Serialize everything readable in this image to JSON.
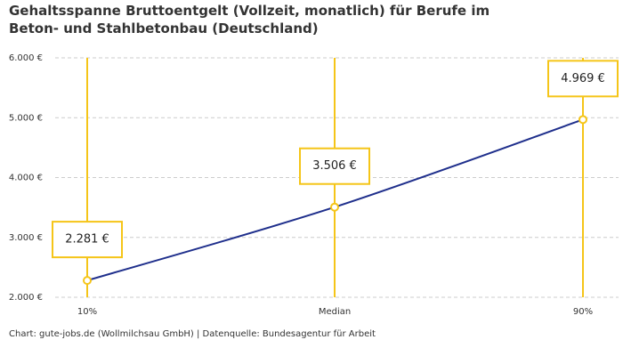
{
  "chart_data": {
    "type": "line",
    "title": "Gehaltsspanne Bruttoentgelt (Vollzeit, monatlich) für Berufe im Beton- und Stahlbetonbau (Deutschland)",
    "source": "Chart: gute-jobs.de (Wollmilchsau GmbH) | Datenquelle: Bundesagentur für Arbeit",
    "categories": [
      "10%",
      "Median",
      "90%"
    ],
    "values": [
      2281,
      3506,
      4969
    ],
    "value_labels": [
      "2.281 €",
      "3.506 €",
      "4.969 €"
    ],
    "color": "#1f2f8c",
    "marker_color": "#f5c518",
    "ylim": [
      2000,
      6000
    ],
    "yticks": [
      {
        "value": 2000,
        "label": "2.000 €"
      },
      {
        "value": 3000,
        "label": "3.000 €"
      },
      {
        "value": 4000,
        "label": "4.000 €"
      },
      {
        "value": 5000,
        "label": "5.000 €"
      },
      {
        "value": 6000,
        "label": "6.000 €"
      }
    ],
    "grid": true
  }
}
